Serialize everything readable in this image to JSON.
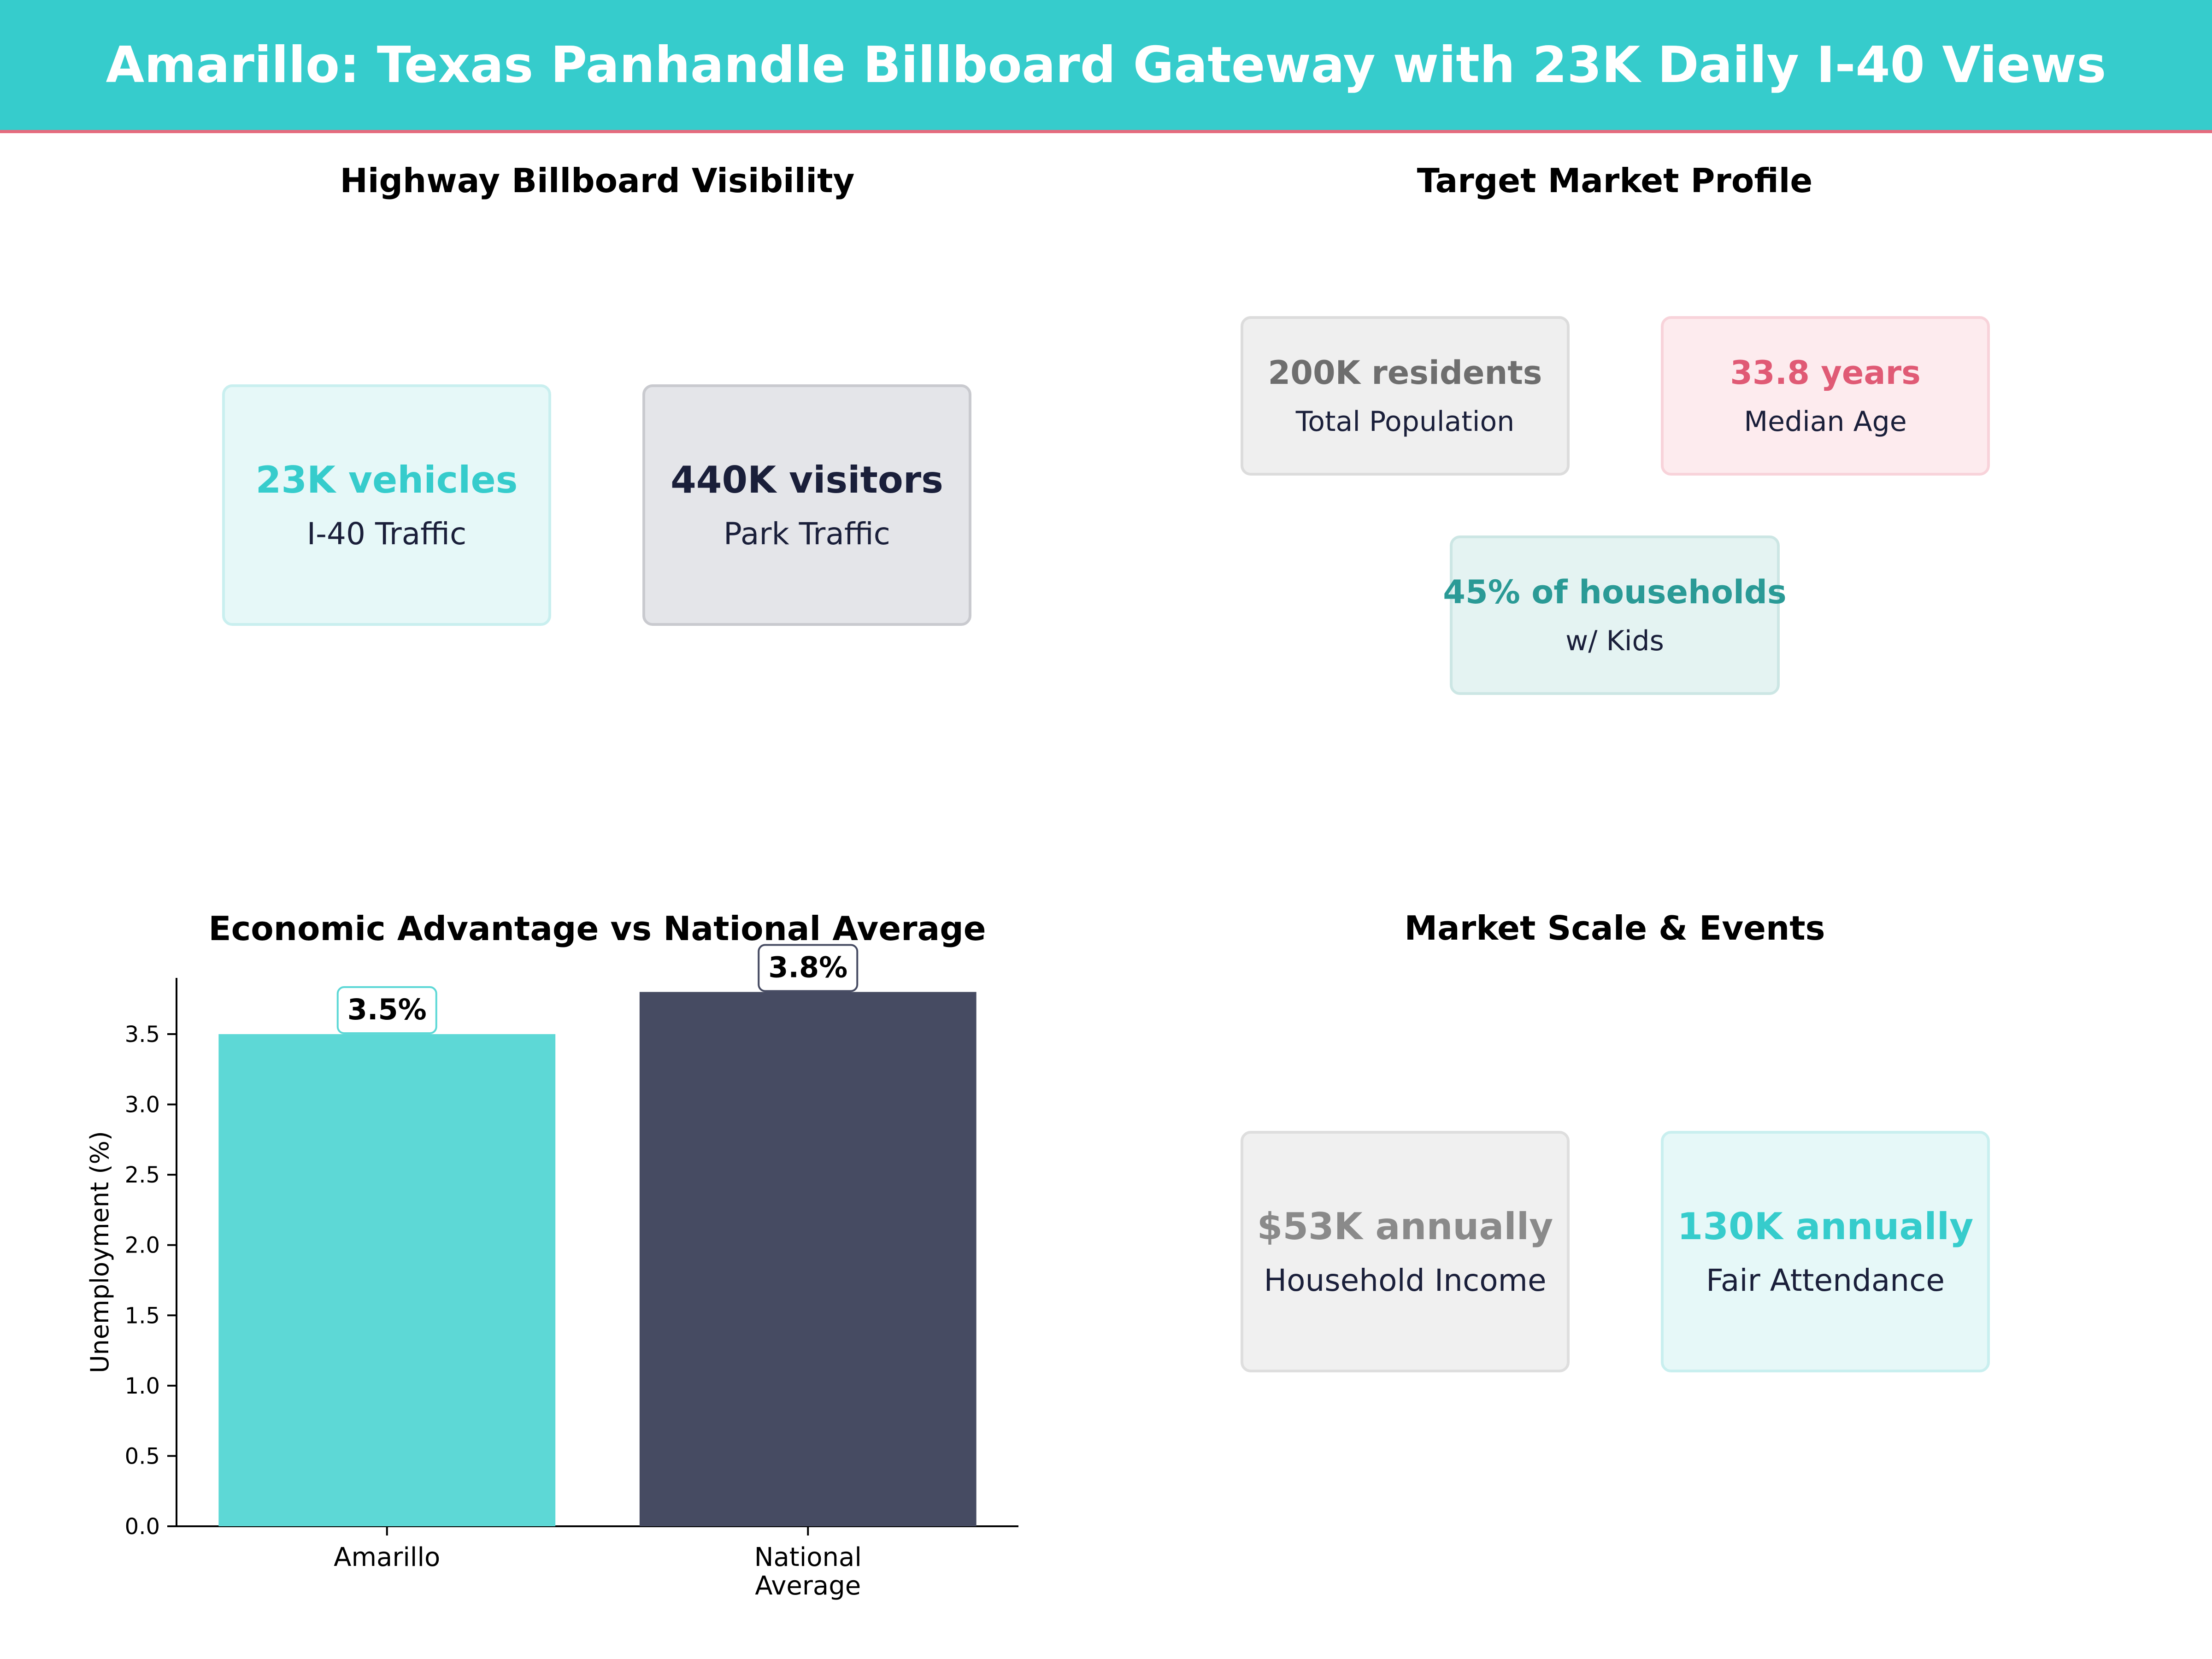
{
  "header": {
    "title": "Amarillo: Texas Panhandle Billboard Gateway with 23K Daily I-40 Views"
  },
  "panels": {
    "highway": {
      "title": "Highway Billboard Visibility",
      "cards": [
        {
          "value": "23K vehicles",
          "label": "I-40 Traffic",
          "value_color": "#36cccc",
          "bg": "#e6f8f8",
          "border": "#c9efef"
        },
        {
          "value": "440K visitors",
          "label": "Park Traffic",
          "value_color": "#1a1f3a",
          "bg": "#e4e5e9",
          "border": "#c9cacf"
        }
      ]
    },
    "market": {
      "title": "Target Market Profile",
      "cards": [
        {
          "value": "200K residents",
          "label": "Total Population",
          "value_color": "#6e6e6e",
          "bg": "#efefef",
          "border": "#dcdcdc"
        },
        {
          "value": "33.8 years",
          "label": "Median Age",
          "value_color": "#e05a75",
          "bg": "#fdebee",
          "border": "#f8d3da"
        },
        {
          "value": "45% of households",
          "label": "w/ Kids",
          "value_color": "#2a9a96",
          "bg": "#e4f3f2",
          "border": "#cce6e4"
        }
      ]
    },
    "scale": {
      "title": "Market Scale & Events",
      "cards": [
        {
          "value": "$53K annually",
          "label": "Household Income",
          "value_color": "#8a8a8a",
          "bg": "#f0f0f0",
          "border": "#dedede"
        },
        {
          "value": "130K annually",
          "label": "Fair Attendance",
          "value_color": "#36cccc",
          "bg": "#e6f8f8",
          "border": "#c9efef"
        }
      ]
    }
  },
  "chart_data": {
    "type": "bar",
    "title": "Economic Advantage vs National Average",
    "categories": [
      "Amarillo",
      "National Average"
    ],
    "category_lines": [
      [
        "Amarillo"
      ],
      [
        "National",
        "Average"
      ]
    ],
    "values": [
      3.5,
      3.8
    ],
    "data_labels": [
      "3.5%",
      "3.8%"
    ],
    "colors": [
      "#5dd8d6",
      "#464b62"
    ],
    "ylabel": "Unemployment (%)",
    "xlabel": "",
    "ylim": [
      0,
      3.9
    ],
    "yticks": [
      0.0,
      0.5,
      1.0,
      1.5,
      2.0,
      2.5,
      3.0,
      3.5
    ],
    "ytick_labels": [
      "0.0",
      "0.5",
      "1.0",
      "1.5",
      "2.0",
      "2.5",
      "3.0",
      "3.5"
    ],
    "grid": false,
    "legend": "none"
  }
}
